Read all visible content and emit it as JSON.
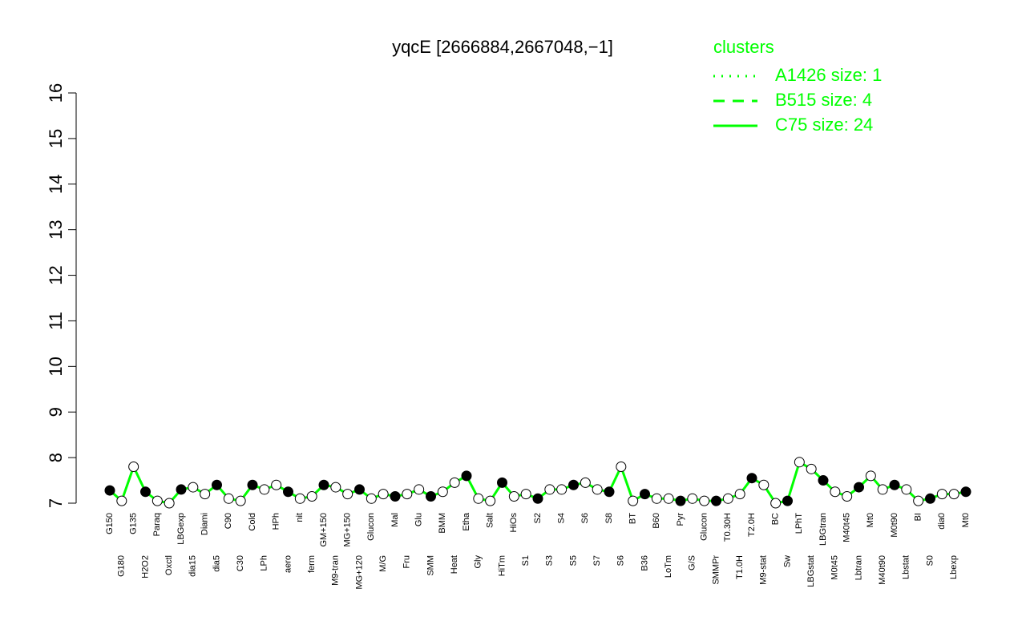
{
  "chart_data": {
    "type": "line",
    "title": "yqcE [2666884,2667048,−1]",
    "categories": [
      "G150",
      "G180",
      "G135",
      "H2O2",
      "Paraq",
      "Oxctl",
      "LBGexp",
      "dia15",
      "Diami",
      "dia5",
      "C90",
      "C30",
      "Cold",
      "LPh",
      "HPh",
      "aero",
      "nit",
      "ferm",
      "GM+150",
      "M9-tran",
      "MG+150",
      "MG+120",
      "Glucon",
      "M/G",
      "Mal",
      "Fru",
      "Glu",
      "SMM",
      "BMM",
      "Heat",
      "Etha",
      "Gly",
      "Salt",
      "HiTm",
      "HiOs",
      "S1",
      "S2",
      "S3",
      "S4",
      "S5",
      "S6",
      "S7",
      "S8",
      "S6",
      "BT",
      "B36",
      "B60",
      "LoTm",
      "Pyr",
      "G/S",
      "Glucon",
      "SMMPr",
      "T0.30H",
      "T1.0H",
      "T2.0H",
      "M9-stat",
      "BC",
      "Sw",
      "LPhT",
      "LBGstat",
      "LBGtran",
      "M0t45",
      "M40t45",
      "Lbtran",
      "Mt0",
      "M40t90",
      "M0t90",
      "Lbstat",
      "BI",
      "S0",
      "dia0",
      "Lbexp",
      "Mt0"
    ],
    "values": [
      7.28,
      7.05,
      7.8,
      7.25,
      7.05,
      7.0,
      7.3,
      7.35,
      7.2,
      7.4,
      7.1,
      7.05,
      7.4,
      7.3,
      7.4,
      7.25,
      7.1,
      7.15,
      7.4,
      7.35,
      7.2,
      7.3,
      7.1,
      7.2,
      7.15,
      7.2,
      7.3,
      7.15,
      7.25,
      7.45,
      7.6,
      7.1,
      7.05,
      7.45,
      7.15,
      7.2,
      7.1,
      7.3,
      7.3,
      7.4,
      7.45,
      7.3,
      7.25,
      7.8,
      7.05,
      7.2,
      7.1,
      7.1,
      7.05,
      7.1,
      7.05,
      7.05,
      7.1,
      7.2,
      7.55,
      7.4,
      7.0,
      7.05,
      7.9,
      7.75,
      7.5,
      7.25,
      7.15,
      7.35,
      7.6,
      7.3,
      7.4,
      7.3,
      7.05,
      7.1,
      7.2,
      7.2,
      7.25
    ],
    "color": "#00ff00",
    "ylim": [
      7,
      16
    ],
    "yticks": [
      7,
      8,
      9,
      10,
      11,
      12,
      13,
      14,
      15,
      16
    ],
    "legend": {
      "title": "clusters",
      "position": "top-right",
      "entries": [
        {
          "label": "A1426 size: 1",
          "dash": "dotted"
        },
        {
          "label": "B515 size: 4",
          "dash": "dashed"
        },
        {
          "label": "C75 size: 24",
          "dash": "solid"
        }
      ]
    }
  }
}
